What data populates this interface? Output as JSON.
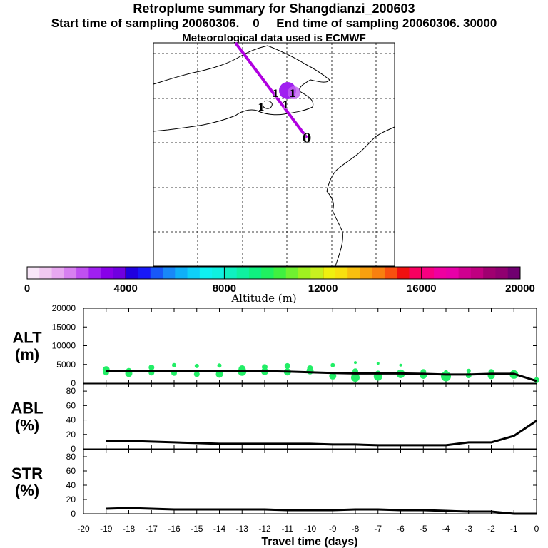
{
  "header": {
    "title": "Retroplume summary for Shangdianzi_200603",
    "subtitle1": "Start time of sampling 20060306.    0     End time of sampling 20060306. 30000",
    "subtitle2": "Meteorological data used is ECMWF"
  },
  "colorbar": {
    "label": "Altitude  (m)",
    "tick_labels": [
      "0",
      "4000",
      "8000",
      "12000",
      "16000",
      "20000"
    ],
    "colors": [
      "#f8e6f8",
      "#f0c8f0",
      "#e8a8f0",
      "#d880f0",
      "#c050f0",
      "#a020f0",
      "#8800e8",
      "#7000e0",
      "#2000e0",
      "#1818f8",
      "#1858f8",
      "#1888f8",
      "#10b0f8",
      "#10d0f8",
      "#10f0f0",
      "#10f0e0",
      "#10f0c0",
      "#10f0a0",
      "#10f080",
      "#20f060",
      "#40f040",
      "#70f030",
      "#a0f020",
      "#c8f020",
      "#f0f010",
      "#f8e010",
      "#f8c010",
      "#f8a010",
      "#f88010",
      "#f85010",
      "#f01010",
      "#f80060",
      "#f80080",
      "#f000a0",
      "#e800a8",
      "#d00090",
      "#c00080",
      "#a00070",
      "#900070",
      "#700070"
    ]
  },
  "map": {
    "markers": [
      {
        "label": "0",
        "color": "#ffffff"
      },
      {
        "label": "1",
        "color": "#c060f0"
      },
      {
        "label": "1",
        "color": "#ffffff"
      },
      {
        "label": "1",
        "color": "#ffffff"
      },
      {
        "label": "1",
        "color": "#ffffff"
      }
    ],
    "track_color": "#b000e0"
  },
  "chart_data": [
    {
      "type": "scatter+line",
      "name": "ALT",
      "ylabel": "ALT\n(m)",
      "ylabel_lines": [
        "ALT",
        "(m)"
      ],
      "xlabel": "Travel time (days)",
      "ylim": [
        0,
        20000
      ],
      "yticks": [
        "0",
        "5000",
        "10000",
        "15000",
        "20000"
      ],
      "xlim": [
        -20,
        0
      ],
      "line": {
        "x": [
          -19,
          -18,
          -17,
          -16,
          -15,
          -14,
          -13,
          -12,
          -11,
          -10,
          -9,
          -8,
          -7,
          -6,
          -5,
          -4,
          -3,
          -2,
          -1,
          0
        ],
        "y": [
          3200,
          3200,
          3300,
          3300,
          3300,
          3300,
          3300,
          3200,
          3100,
          2900,
          2700,
          2600,
          2600,
          2600,
          2500,
          2300,
          2300,
          2500,
          2500,
          600
        ]
      },
      "scatter": {
        "x": [
          -19,
          -19,
          -18,
          -18,
          -17,
          -17,
          -16,
          -16,
          -15,
          -15,
          -14,
          -14,
          -13,
          -13,
          -12,
          -12,
          -11,
          -11,
          -10,
          -10,
          -9,
          -9,
          -8,
          -8,
          -8,
          -7,
          -7,
          -7,
          -6,
          -6,
          -5,
          -5,
          -4,
          -4,
          -3,
          -3,
          -2,
          -2,
          -1,
          -1,
          0
        ],
        "y": [
          3600,
          2800,
          3300,
          2600,
          4200,
          2800,
          4800,
          2700,
          4600,
          2400,
          4700,
          2400,
          3800,
          3100,
          4300,
          3100,
          4600,
          3000,
          4000,
          3300,
          4800,
          1900,
          5500,
          3200,
          1500,
          5300,
          2600,
          1800,
          4800,
          2500,
          3000,
          2100,
          2900,
          1800,
          3300,
          2100,
          3000,
          2000,
          3000,
          2300,
          800
        ],
        "r": [
          5,
          4,
          4,
          5,
          4,
          4,
          3,
          4,
          3,
          4,
          3,
          5,
          5,
          6,
          4,
          5,
          4,
          5,
          4,
          5,
          3,
          5,
          2,
          4,
          6,
          2,
          4,
          6,
          2,
          6,
          4,
          5,
          3,
          7,
          3,
          4,
          4,
          5,
          3,
          6,
          4
        ],
        "color": "#22ee66"
      }
    },
    {
      "type": "line",
      "name": "ABL",
      "ylabel_lines": [
        "ABL",
        "(%)"
      ],
      "ylim": [
        0,
        90
      ],
      "yticks": [
        "0",
        "20",
        "40",
        "60",
        "80"
      ],
      "x": [
        -19,
        -18,
        -17,
        -16,
        -15,
        -14,
        -13,
        -12,
        -11,
        -10,
        -9,
        -8,
        -7,
        -6,
        -5,
        -4,
        -3,
        -2,
        -1,
        0
      ],
      "y": [
        11,
        11,
        10,
        9,
        8,
        7,
        7,
        7,
        7,
        7,
        6,
        6,
        5,
        5,
        5,
        5,
        9,
        9,
        18,
        39
      ]
    },
    {
      "type": "line",
      "name": "STR",
      "ylabel_lines": [
        "STR",
        "(%)"
      ],
      "ylim": [
        0,
        90
      ],
      "yticks": [
        "0",
        "20",
        "40",
        "60",
        "80"
      ],
      "x": [
        -19,
        -18,
        -17,
        -16,
        -15,
        -14,
        -13,
        -12,
        -11,
        -10,
        -9,
        -8,
        -7,
        -6,
        -5,
        -4,
        -3,
        -2,
        -1,
        0
      ],
      "y": [
        7,
        8,
        7,
        6,
        6,
        6,
        6,
        6,
        5,
        5,
        5,
        6,
        6,
        5,
        5,
        4,
        3,
        3,
        0,
        0
      ]
    }
  ],
  "xaxis": {
    "tick_labels": [
      "-20",
      "-19",
      "-18",
      "-17",
      "-16",
      "-15",
      "-14",
      "-13",
      "-12",
      "-11",
      "-10",
      "-9",
      "-8",
      "-7",
      "-6",
      "-5",
      "-4",
      "-3",
      "-2",
      "-1",
      "0"
    ],
    "label": "Travel time (days)"
  }
}
